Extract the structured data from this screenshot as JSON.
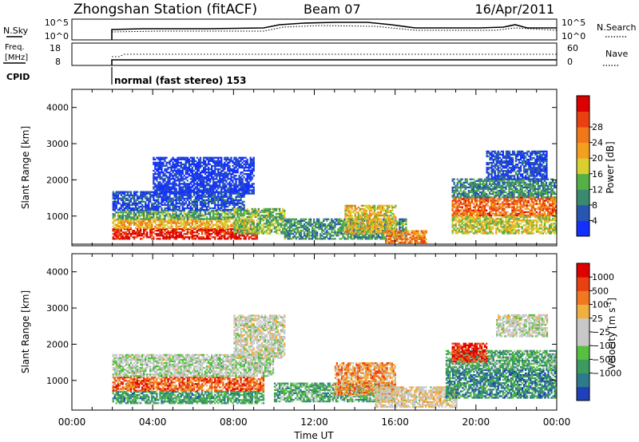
{
  "header": {
    "station": "Zhongshan Station (fitACF)",
    "beam": "Beam 07",
    "date": "16/Apr/2011"
  },
  "strips": {
    "noise": {
      "left_label": "N.Sky",
      "right_label": "N.Search",
      "left_ticks": [
        "10^5",
        "10^0"
      ],
      "right_ticks": [
        "10^5",
        "10^0"
      ]
    },
    "freq": {
      "left_label_1": "Freq.",
      "left_label_2": "[MHz]",
      "right_label": "Nave",
      "left_ticks": [
        "18",
        "8"
      ],
      "right_ticks": [
        "60",
        "0"
      ]
    },
    "cpid": {
      "label": "CPID",
      "text": "normal (fast stereo) 153"
    }
  },
  "chart_data": [
    {
      "type": "heatmap",
      "name": "power",
      "ylabel": "Slant Range [km]",
      "xlabel": "",
      "ylim": [
        180,
        4500
      ],
      "xlim_hours": [
        0,
        24
      ],
      "yticks": [
        "1000",
        "2000",
        "3000",
        "4000"
      ],
      "colorbar": {
        "label": "Power [dB]",
        "ticks": [
          "4",
          "8",
          "12",
          "16",
          "20",
          "24",
          "28"
        ],
        "colors": [
          "#1430ff",
          "#2855b0",
          "#3a8a70",
          "#55b045",
          "#d9d030",
          "#f3a020",
          "#f07818",
          "#e84010",
          "#dc0000"
        ]
      },
      "regions": [
        {
          "t": [
            2.0,
            9.2
          ],
          "r": [
            350,
            650
          ],
          "level": 0.92
        },
        {
          "t": [
            2.0,
            9.0
          ],
          "r": [
            650,
            900
          ],
          "level": 0.6
        },
        {
          "t": [
            2.0,
            8.0
          ],
          "r": [
            900,
            1150
          ],
          "level": 0.35
        },
        {
          "t": [
            2.0,
            8.5
          ],
          "r": [
            1150,
            1650
          ],
          "level": 0.12
        },
        {
          "t": [
            8.0,
            10.5
          ],
          "r": [
            500,
            1200
          ],
          "level": 0.4
        },
        {
          "t": [
            10.5,
            16.5
          ],
          "r": [
            350,
            900
          ],
          "level": 0.3
        },
        {
          "t": [
            13.5,
            16.0
          ],
          "r": [
            500,
            1300
          ],
          "level": 0.55
        },
        {
          "t": [
            15.5,
            17.5
          ],
          "r": [
            250,
            600
          ],
          "level": 0.7
        },
        {
          "t": [
            18.8,
            24.0
          ],
          "r": [
            500,
            1000
          ],
          "level": 0.5
        },
        {
          "t": [
            18.8,
            24.0
          ],
          "r": [
            1000,
            1500
          ],
          "level": 0.75
        },
        {
          "t": [
            18.8,
            24.0
          ],
          "r": [
            1500,
            2000
          ],
          "level": 0.28
        },
        {
          "t": [
            20.5,
            23.5
          ],
          "r": [
            2000,
            2800
          ],
          "level": 0.12
        },
        {
          "t": [
            4.0,
            9.0
          ],
          "r": [
            1600,
            2600
          ],
          "level": 0.06
        }
      ]
    },
    {
      "type": "heatmap",
      "name": "velocity",
      "ylabel": "Slant Range [km]",
      "xlabel": "Time UT",
      "ylim": [
        180,
        4500
      ],
      "xlim_hours": [
        0,
        24
      ],
      "xticks": [
        "00:00",
        "04:00",
        "08:00",
        "12:00",
        "16:00",
        "20:00",
        "00:00"
      ],
      "yticks": [
        "1000",
        "2000",
        "3000",
        "4000"
      ],
      "colorbar": {
        "label_main": "Velocity",
        "label_unit_open": "[m s",
        "label_unit_exp": "-1",
        "label_unit_close": "]",
        "ticks": [
          "1000",
          "500",
          "100",
          "25",
          "−25",
          "−100",
          "−500",
          "−1000"
        ],
        "colors": [
          "#1f40b8",
          "#2c7a8a",
          "#3d9a60",
          "#58c040",
          "#c8c8c8",
          "#c8c8c8",
          "#f0b040",
          "#f07820",
          "#e84010",
          "#e00000"
        ]
      },
      "regions": [
        {
          "t": [
            2.0,
            9.5
          ],
          "r": [
            350,
            700
          ],
          "level": 0.25
        },
        {
          "t": [
            2.0,
            9.5
          ],
          "r": [
            700,
            1100
          ],
          "level": 0.8
        },
        {
          "t": [
            2.0,
            10.0
          ],
          "r": [
            1100,
            1700
          ],
          "level": 0.45
        },
        {
          "t": [
            8.0,
            10.5
          ],
          "r": [
            1600,
            2800
          ],
          "level": 0.5
        },
        {
          "t": [
            10.0,
            16.0
          ],
          "r": [
            400,
            900
          ],
          "level": 0.3
        },
        {
          "t": [
            13.0,
            16.0
          ],
          "r": [
            600,
            1500
          ],
          "level": 0.7
        },
        {
          "t": [
            15.0,
            19.0
          ],
          "r": [
            250,
            800
          ],
          "level": 0.55
        },
        {
          "t": [
            18.5,
            24.0
          ],
          "r": [
            500,
            1300
          ],
          "level": 0.2
        },
        {
          "t": [
            18.5,
            24.0
          ],
          "r": [
            1300,
            1800
          ],
          "level": 0.3
        },
        {
          "t": [
            18.8,
            20.5
          ],
          "r": [
            1500,
            2000
          ],
          "level": 0.9
        },
        {
          "t": [
            21.0,
            23.5
          ],
          "r": [
            2200,
            2800
          ],
          "level": 0.48
        }
      ]
    }
  ]
}
